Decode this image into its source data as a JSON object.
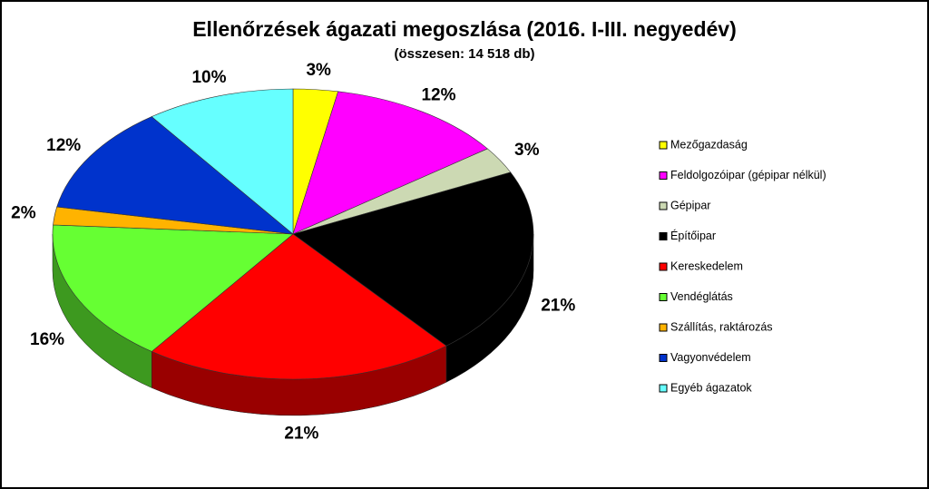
{
  "chart_data": {
    "type": "pie",
    "title": "Ellenőrzések ágazati megoszlása (2016. I-III. negyedév)",
    "subtitle": "(összesen: 14 518 db)",
    "categories": [
      "Mezőgazdaság",
      "Feldolgozóipar (gépipar nélkül)",
      "Gépipar",
      "Építőipar",
      "Kereskedelem",
      "Vendéglátás",
      "Szállítás, raktározás",
      "Vagyonvédelem",
      "Egyéb ágazatok"
    ],
    "values": [
      3,
      12,
      3,
      21,
      21,
      16,
      2,
      12,
      10
    ],
    "value_labels": [
      "3%",
      "12%",
      "3%",
      "21%",
      "21%",
      "16%",
      "2%",
      "12%",
      "10%"
    ],
    "colors": [
      "#ffff00",
      "#ff00ff",
      "#ccd9b3",
      "#000000",
      "#ff0000",
      "#66ff33",
      "#ffb300",
      "#0033cc",
      "#66ffff"
    ],
    "legend": "right"
  }
}
